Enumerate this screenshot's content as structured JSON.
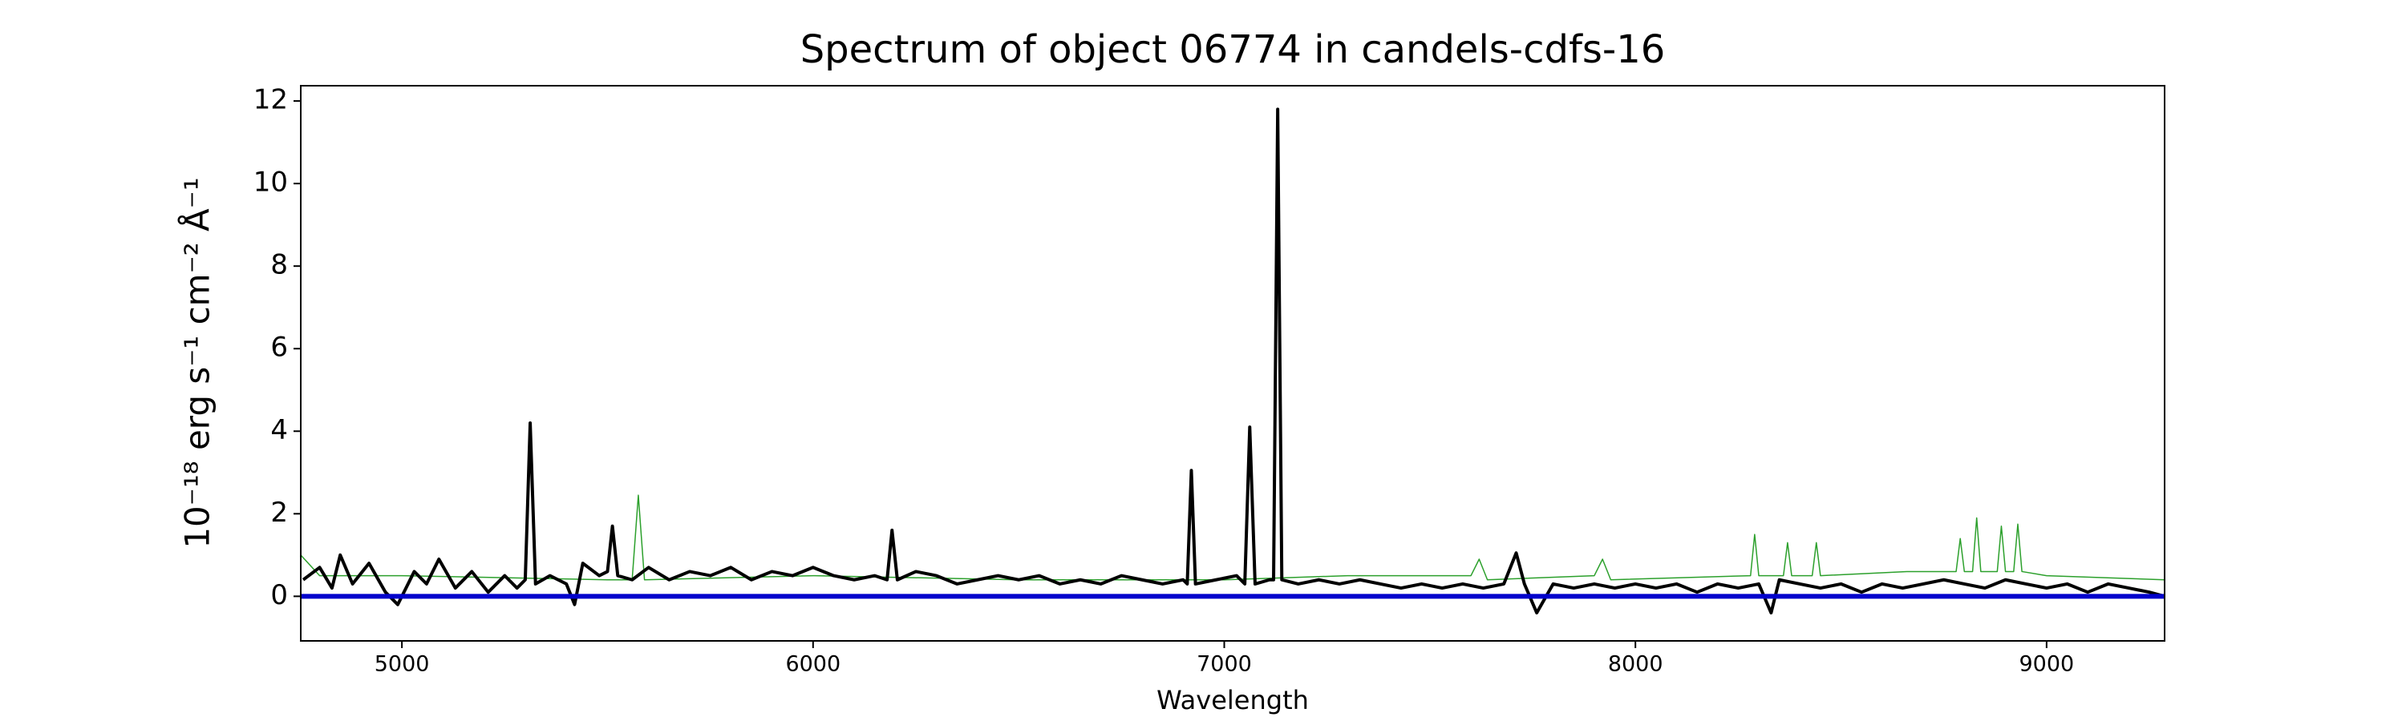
{
  "chart_data": {
    "type": "line",
    "title": "Spectrum of object 06774 in candels-cdfs-16",
    "xlabel": "Wavelength",
    "ylabel": "10⁻¹⁸ erg s⁻¹ cm⁻² Å⁻¹",
    "xlim": [
      4754,
      9287
    ],
    "ylim": [
      -1.08,
      12.37
    ],
    "xticks": [
      5000,
      6000,
      7000,
      8000,
      9000
    ],
    "yticks": [
      0,
      2,
      4,
      6,
      8,
      10,
      12
    ],
    "series": [
      {
        "color": "#2ca02c",
        "width": 1.5,
        "x": [
          4754,
          4800,
          5000,
          5500,
          5560,
          5575,
          5590,
          6000,
          6500,
          7000,
          7300,
          7600,
          7620,
          7640,
          7900,
          7920,
          7940,
          8280,
          8290,
          8300,
          8360,
          8370,
          8380,
          8430,
          8440,
          8450,
          8660,
          8780,
          8790,
          8800,
          8820,
          8830,
          8840,
          8880,
          8890,
          8900,
          8920,
          8930,
          8940,
          9000,
          9287
        ],
        "values": [
          1.0,
          0.5,
          0.5,
          0.4,
          0.4,
          2.45,
          0.4,
          0.5,
          0.4,
          0.4,
          0.5,
          0.5,
          0.9,
          0.4,
          0.5,
          0.9,
          0.4,
          0.5,
          1.5,
          0.5,
          0.5,
          1.3,
          0.5,
          0.5,
          1.3,
          0.5,
          0.6,
          0.6,
          1.4,
          0.6,
          0.6,
          1.9,
          0.6,
          0.6,
          1.7,
          0.6,
          0.6,
          1.75,
          0.6,
          0.5,
          0.4
        ]
      },
      {
        "color": "#000000",
        "width": 4,
        "x": [
          4760,
          4800,
          4830,
          4850,
          4880,
          4920,
          4960,
          4990,
          5030,
          5060,
          5090,
          5130,
          5170,
          5210,
          5250,
          5280,
          5300,
          5312,
          5325,
          5360,
          5400,
          5420,
          5440,
          5480,
          5500,
          5512,
          5525,
          5560,
          5600,
          5650,
          5700,
          5750,
          5800,
          5850,
          5900,
          5950,
          6000,
          6050,
          6100,
          6150,
          6180,
          6192,
          6205,
          6250,
          6300,
          6350,
          6400,
          6450,
          6500,
          6550,
          6600,
          6650,
          6700,
          6750,
          6800,
          6850,
          6900,
          6910,
          6920,
          6930,
          6980,
          7030,
          7050,
          7062,
          7075,
          7110,
          7120,
          7130,
          7140,
          7180,
          7230,
          7280,
          7330,
          7380,
          7430,
          7480,
          7530,
          7580,
          7630,
          7680,
          7710,
          7730,
          7760,
          7800,
          7850,
          7900,
          7950,
          8000,
          8050,
          8100,
          8150,
          8200,
          8250,
          8300,
          8330,
          8350,
          8400,
          8450,
          8500,
          8550,
          8600,
          8650,
          8700,
          8750,
          8800,
          8850,
          8900,
          8950,
          9000,
          9050,
          9100,
          9150,
          9200,
          9250,
          9287
        ],
        "values": [
          0.4,
          0.7,
          0.2,
          1.0,
          0.3,
          0.8,
          0.1,
          -0.2,
          0.6,
          0.3,
          0.9,
          0.2,
          0.6,
          0.1,
          0.5,
          0.2,
          0.4,
          4.2,
          0.3,
          0.5,
          0.3,
          -0.2,
          0.8,
          0.5,
          0.6,
          1.7,
          0.5,
          0.4,
          0.7,
          0.4,
          0.6,
          0.5,
          0.7,
          0.4,
          0.6,
          0.5,
          0.7,
          0.5,
          0.4,
          0.5,
          0.4,
          1.6,
          0.4,
          0.6,
          0.5,
          0.3,
          0.4,
          0.5,
          0.4,
          0.5,
          0.3,
          0.4,
          0.3,
          0.5,
          0.4,
          0.3,
          0.4,
          0.3,
          3.05,
          0.3,
          0.4,
          0.5,
          0.3,
          4.1,
          0.3,
          0.4,
          0.4,
          11.8,
          0.4,
          0.3,
          0.4,
          0.3,
          0.4,
          0.3,
          0.2,
          0.3,
          0.2,
          0.3,
          0.2,
          0.3,
          1.05,
          0.3,
          -0.4,
          0.3,
          0.2,
          0.3,
          0.2,
          0.3,
          0.2,
          0.3,
          0.1,
          0.3,
          0.2,
          0.3,
          -0.4,
          0.4,
          0.3,
          0.2,
          0.3,
          0.1,
          0.3,
          0.2,
          0.3,
          0.4,
          0.3,
          0.2,
          0.4,
          0.3,
          0.2,
          0.3,
          0.1,
          0.3,
          0.2,
          0.1,
          0.0
        ]
      },
      {
        "color": "#0000cc",
        "width": 6,
        "x": [
          4754,
          9287
        ],
        "values": [
          0,
          0
        ]
      }
    ]
  }
}
